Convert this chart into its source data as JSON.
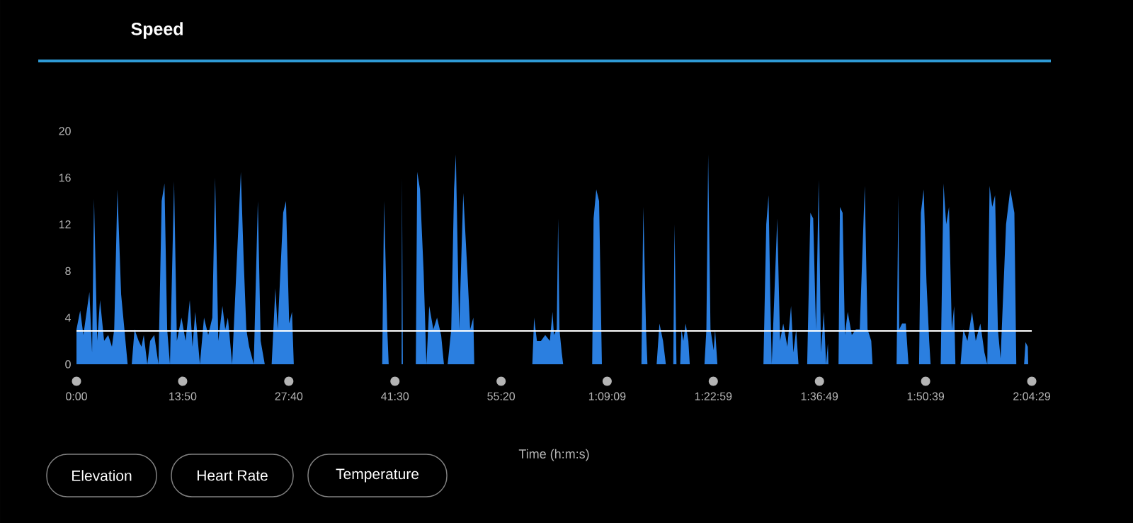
{
  "chart_data": {
    "type": "area",
    "title": "Speed",
    "xlabel": "Time (h:m:s)",
    "color": "#2b7fe0",
    "x": [
      0,
      29,
      54,
      101,
      122,
      137,
      162,
      184,
      216,
      248,
      277,
      295,
      320,
      349,
      378,
      400,
      432,
      454,
      486,
      508,
      526,
      554,
      576,
      608,
      641,
      666,
      688,
      709,
      731,
      763,
      785,
      821,
      853,
      886,
      907,
      929,
      965,
      997,
      1030,
      1062,
      1084,
      1109,
      1141,
      1163,
      1184,
      1217,
      1285,
      1307,
      1328,
      1350,
      1386,
      1418,
      1440,
      1472,
      1526,
      1555,
      1573,
      1616,
      1638,
      1663,
      1685,
      1699,
      2390,
      2405,
      2430,
      2441,
      2542,
      2545,
      2552,
      2653,
      2664,
      2686,
      2714,
      2736,
      2758,
      2790,
      2819,
      2851,
      2873,
      2902,
      2930,
      2952,
      2966,
      2992,
      3024,
      3056,
      3078,
      3103,
      3110,
      3564,
      3578,
      3600,
      3632,
      3665,
      3701,
      3722,
      3733,
      3755,
      3766,
      3776,
      3794,
      3805,
      4032,
      4043,
      4064,
      4086,
      4108,
      4417,
      4432,
      4453,
      4464,
      4536,
      4558,
      4586,
      4608,
      4666,
      4676,
      4691,
      4720,
      4730,
      4745,
      4763,
      4784,
      4795,
      4910,
      4925,
      4939,
      4957,
      4982,
      4993,
      5011,
      5371,
      5393,
      5411,
      5425,
      5436,
      5479,
      5501,
      5526,
      5558,
      5587,
      5605,
      5627,
      5645,
      5713,
      5738,
      5760,
      5782,
      5803,
      5821,
      5843,
      5861,
      5875,
      5879,
      5958,
      5969,
      5990,
      6008,
      6030,
      6062,
      6095,
      6124,
      6163,
      6185,
      6214,
      6224,
      6412,
      6426,
      6433,
      6455,
      6484,
      6505,
      6588,
      6602,
      6624,
      6646,
      6667,
      6678,
      6757,
      6779,
      6800,
      6822,
      6844,
      6862,
      6872,
      6912,
      6934,
      6966,
      7002,
      7031,
      7067,
      7099,
      7121,
      7139,
      7160,
      7182,
      7204,
      7225,
      7268,
      7301,
      7333,
      7348,
      7409,
      7420,
      7438,
      7441
    ],
    "values": [
      3.0,
      4.6,
      2.5,
      6.2,
      1.0,
      14.2,
      2.0,
      5.5,
      2.0,
      2.5,
      1.5,
      3.0,
      15.0,
      6.0,
      2.6,
      0,
      0,
      3.0,
      2.0,
      1.5,
      2.5,
      0,
      2.0,
      2.5,
      0,
      14.0,
      15.5,
      3.0,
      0,
      15.7,
      2.0,
      4.0,
      2.0,
      5.5,
      1.5,
      4.5,
      0,
      4.0,
      2.5,
      4.0,
      16.0,
      2.0,
      5.0,
      3.0,
      4.0,
      0,
      16.5,
      9.0,
      3.0,
      1.5,
      0,
      14.0,
      2.0,
      0,
      0,
      6.5,
      3.0,
      13.0,
      14.0,
      3.5,
      4.5,
      0,
      0,
      14.0,
      3.0,
      0,
      0,
      16.0,
      0,
      0,
      16.5,
      15.0,
      8.0,
      0,
      5.0,
      3.0,
      4.0,
      2.5,
      0,
      0,
      3.0,
      15.0,
      18.0,
      3.0,
      14.7,
      8.0,
      3.0,
      4.0,
      0,
      0,
      4.0,
      2.0,
      2.0,
      2.5,
      2.0,
      4.5,
      2.5,
      3.0,
      12.5,
      3.0,
      1.0,
      0,
      0,
      12.5,
      15.0,
      14.0,
      0,
      0,
      13.5,
      3.0,
      0,
      0,
      3.5,
      2.0,
      0,
      0,
      12.0,
      0,
      0,
      3.0,
      2.0,
      3.5,
      2.0,
      0,
      0,
      3.0,
      18.0,
      3.0,
      1.2,
      3.0,
      0,
      0,
      12.0,
      14.5,
      5.5,
      0,
      12.5,
      2.0,
      3.5,
      1.5,
      5.0,
      1.0,
      3.0,
      0,
      0,
      13.0,
      12.5,
      3.0,
      15.8,
      1.0,
      4.5,
      0,
      1.8,
      0,
      0,
      13.5,
      13.0,
      2.5,
      4.5,
      2.5,
      3.0,
      3.0,
      15.3,
      3.0,
      2.0,
      0,
      0,
      14.5,
      3.0,
      3.5,
      3.5,
      0,
      0,
      13.0,
      15.0,
      7.0,
      2.0,
      0,
      0,
      15.5,
      12.0,
      13.5,
      3.0,
      5.0,
      0,
      0,
      3.0,
      2.0,
      4.5,
      2.0,
      3.5,
      1.0,
      0,
      15.3,
      13.5,
      14.5,
      3.0,
      0.5,
      12.0,
      15.0,
      13.0,
      0,
      0,
      1.9,
      1.5,
      0
    ],
    "xlim": [
      0,
      7469
    ],
    "ylim": [
      0,
      20
    ],
    "xticks": [
      {
        "value": 0,
        "label": "0:00"
      },
      {
        "value": 830,
        "label": "13:50"
      },
      {
        "value": 1660,
        "label": "27:40"
      },
      {
        "value": 2490,
        "label": "41:30"
      },
      {
        "value": 3320,
        "label": "55:20"
      },
      {
        "value": 4149,
        "label": "1:09:09"
      },
      {
        "value": 4979,
        "label": "1:22:59"
      },
      {
        "value": 5809,
        "label": "1:36:49"
      },
      {
        "value": 6639,
        "label": "1:50:39"
      },
      {
        "value": 7469,
        "label": "2:04:29"
      }
    ],
    "yticks": [
      0,
      4,
      8,
      12,
      16,
      20
    ],
    "ref_lines": [
      {
        "axis": "y",
        "value": 2.85,
        "color": "#ffffff"
      }
    ],
    "annotations": [
      "Elevation",
      "Heart Rate",
      "Temperature"
    ]
  }
}
